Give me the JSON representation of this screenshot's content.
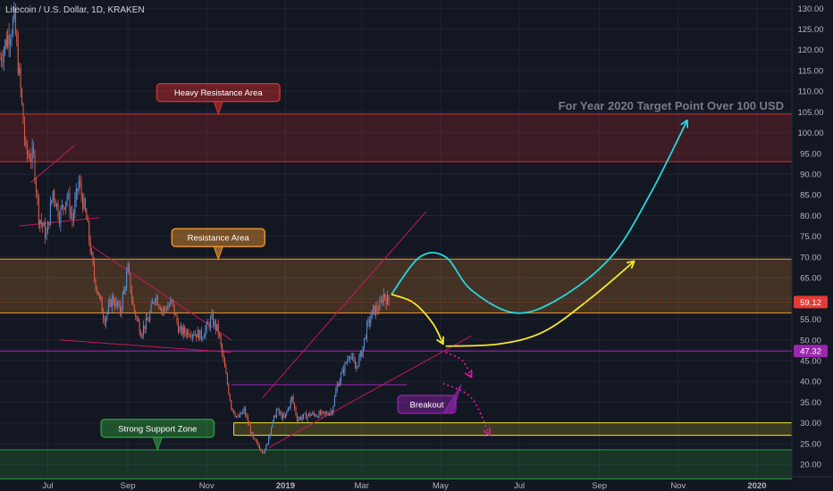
{
  "header": {
    "title": "Litecoin / U.S. Dollar, 1D, KRAKEN"
  },
  "colors": {
    "background": "#131722",
    "grid": "#1f2433",
    "axis_text": "#b2b5be",
    "candle_up": "#5b8fd6",
    "candle_down": "#e05c4a",
    "heavy_resistance": "#d32f2f",
    "resistance": "#f0962e",
    "support": "#2e9e3c",
    "breakout": "#8e24aa",
    "trend": "#c2185b",
    "cyan_path": "#26d7e0",
    "yellow_path": "#f5e52a",
    "magenta_path": "#d81b9b",
    "price_tag": "#e53935",
    "level_tag": "#9c27b0"
  },
  "chart_data": {
    "type": "candlestick",
    "title": "Litecoin / U.S. Dollar, 1D, KRAKEN",
    "ylim": [
      17,
      132
    ],
    "y_ticks": [
      20,
      25,
      30,
      35,
      40,
      45,
      50,
      55,
      60,
      65,
      70,
      75,
      80,
      85,
      90,
      95,
      100,
      105,
      110,
      115,
      120,
      125,
      130
    ],
    "y_tick_labels": [
      "20.00",
      "25.00",
      "30.00",
      "35.00",
      "40.00",
      "45.00",
      "50.00",
      "55.00",
      "60.00",
      "65.00",
      "70.00",
      "75.00",
      "80.00",
      "85.00",
      "90.00",
      "95.00",
      "100.00",
      "105.00",
      "110.00",
      "115.00",
      "120.00",
      "125.00",
      "130.00"
    ],
    "x_ticks": [
      "2018-07-01",
      "2018-09-01",
      "2018-11-01",
      "2019-01-01",
      "2019-03-01",
      "2019-05-01",
      "2019-07-01",
      "2019-09-01",
      "2019-11-01",
      "2020-01-01"
    ],
    "x_tick_labels": [
      "Jul",
      "Sep",
      "Nov",
      "2019",
      "Mar",
      "May",
      "Jul",
      "Sep",
      "Nov",
      "2020"
    ],
    "xlim": [
      "2018-05-25",
      "2020-01-28"
    ],
    "price_anchors": [
      {
        "date": "2018-05-25",
        "price": 118
      },
      {
        "date": "2018-06-01",
        "price": 124
      },
      {
        "date": "2018-06-05",
        "price": 127
      },
      {
        "date": "2018-06-10",
        "price": 110
      },
      {
        "date": "2018-06-14",
        "price": 95
      },
      {
        "date": "2018-06-20",
        "price": 94
      },
      {
        "date": "2018-06-24",
        "price": 80
      },
      {
        "date": "2018-06-30",
        "price": 75
      },
      {
        "date": "2018-07-05",
        "price": 86
      },
      {
        "date": "2018-07-10",
        "price": 80
      },
      {
        "date": "2018-07-16",
        "price": 85
      },
      {
        "date": "2018-07-20",
        "price": 79
      },
      {
        "date": "2018-07-25",
        "price": 88
      },
      {
        "date": "2018-07-31",
        "price": 79
      },
      {
        "date": "2018-08-06",
        "price": 65
      },
      {
        "date": "2018-08-14",
        "price": 55
      },
      {
        "date": "2018-08-20",
        "price": 60
      },
      {
        "date": "2018-08-26",
        "price": 57
      },
      {
        "date": "2018-09-01",
        "price": 67
      },
      {
        "date": "2018-09-05",
        "price": 58
      },
      {
        "date": "2018-09-11",
        "price": 52
      },
      {
        "date": "2018-09-17",
        "price": 55
      },
      {
        "date": "2018-09-22",
        "price": 61
      },
      {
        "date": "2018-09-28",
        "price": 57
      },
      {
        "date": "2018-10-05",
        "price": 59
      },
      {
        "date": "2018-10-11",
        "price": 52
      },
      {
        "date": "2018-10-20",
        "price": 52
      },
      {
        "date": "2018-10-28",
        "price": 51
      },
      {
        "date": "2018-11-05",
        "price": 55
      },
      {
        "date": "2018-11-10",
        "price": 52
      },
      {
        "date": "2018-11-15",
        "price": 43
      },
      {
        "date": "2018-11-20",
        "price": 34
      },
      {
        "date": "2018-11-25",
        "price": 31
      },
      {
        "date": "2018-11-30",
        "price": 33
      },
      {
        "date": "2018-12-07",
        "price": 26
      },
      {
        "date": "2018-12-12",
        "price": 24
      },
      {
        "date": "2018-12-16",
        "price": 23
      },
      {
        "date": "2018-12-20",
        "price": 28
      },
      {
        "date": "2018-12-25",
        "price": 33
      },
      {
        "date": "2018-12-31",
        "price": 31
      },
      {
        "date": "2019-01-06",
        "price": 36
      },
      {
        "date": "2019-01-10",
        "price": 31
      },
      {
        "date": "2019-01-20",
        "price": 32
      },
      {
        "date": "2019-01-31",
        "price": 32
      },
      {
        "date": "2019-02-06",
        "price": 33
      },
      {
        "date": "2019-02-10",
        "price": 39
      },
      {
        "date": "2019-02-15",
        "price": 43
      },
      {
        "date": "2019-02-20",
        "price": 47
      },
      {
        "date": "2019-02-24",
        "price": 43
      },
      {
        "date": "2019-03-01",
        "price": 47
      },
      {
        "date": "2019-03-05",
        "price": 53
      },
      {
        "date": "2019-03-10",
        "price": 57
      },
      {
        "date": "2019-03-15",
        "price": 58
      },
      {
        "date": "2019-03-18",
        "price": 61
      },
      {
        "date": "2019-03-22",
        "price": 59
      }
    ],
    "last_price": 59.12,
    "last_price_label": "59.12",
    "levels": [
      {
        "name": "Heavy Resistance Area",
        "type": "zone",
        "low": 93,
        "high": 104.5,
        "color": "#d32f2f"
      },
      {
        "name": "Resistance Area",
        "type": "zone",
        "low": 56.5,
        "high": 69.5,
        "color": "#f0962e"
      },
      {
        "name": "Strong Support Zone",
        "type": "zone",
        "low": 16.5,
        "high": 23.5,
        "color": "#2e9e3c"
      },
      {
        "name": "Yellow Box",
        "type": "zone",
        "low": 27,
        "high": 30,
        "color": "#f5e52a"
      },
      {
        "name": "Purple Line",
        "type": "line",
        "value": 47.32,
        "color": "#9c27b0"
      },
      {
        "name": "Breakout Line",
        "type": "segment",
        "value": 39.2,
        "from": "2018-11-20",
        "to": "2019-04-05",
        "color": "#8e24aa"
      }
    ],
    "level_tag_label": "47.32",
    "annotations": [
      {
        "text": "Heavy Resistance Area",
        "date": "2018-11-10",
        "price": 104.5,
        "color": "#d32f2f"
      },
      {
        "text": "Resistance Area",
        "date": "2018-11-10",
        "price": 69.5,
        "color": "#f0962e"
      },
      {
        "text": "Strong Support Zone",
        "date": "2018-09-24",
        "price": 23.5,
        "color": "#2e9e3c"
      },
      {
        "text": "Breakout",
        "date": "2019-04-20",
        "price": 39.2,
        "color": "#8e24aa"
      }
    ],
    "headline": "For Year 2020 Target Point Over 100 USD",
    "trendlines": [
      {
        "from": {
          "date": "2018-06-09",
          "price": 77.5
        },
        "to": {
          "date": "2018-08-10",
          "price": 79.5
        }
      },
      {
        "from": {
          "date": "2018-06-18",
          "price": 88
        },
        "to": {
          "date": "2018-07-22",
          "price": 97
        }
      },
      {
        "from": {
          "date": "2018-07-10",
          "price": 50
        },
        "to": {
          "date": "2018-11-20",
          "price": 47
        }
      },
      {
        "from": {
          "date": "2018-08-02",
          "price": 73
        },
        "to": {
          "date": "2018-11-20",
          "price": 50
        }
      },
      {
        "from": {
          "date": "2018-12-19",
          "price": 24
        },
        "to": {
          "date": "2019-05-25",
          "price": 51
        }
      },
      {
        "from": {
          "date": "2018-12-14",
          "price": 36
        },
        "to": {
          "date": "2019-04-20",
          "price": 81
        }
      }
    ],
    "projections": [
      {
        "name": "cyan",
        "points": [
          {
            "date": "2019-03-24",
            "price": 61
          },
          {
            "date": "2019-04-15",
            "price": 70
          },
          {
            "date": "2019-05-05",
            "price": 70
          },
          {
            "date": "2019-05-25",
            "price": 62
          },
          {
            "date": "2019-06-28",
            "price": 56.5
          },
          {
            "date": "2019-08-01",
            "price": 60
          },
          {
            "date": "2019-09-10",
            "price": 70
          },
          {
            "date": "2019-10-10",
            "price": 85
          },
          {
            "date": "2019-11-08",
            "price": 103
          }
        ]
      },
      {
        "name": "yellow_up",
        "points": [
          {
            "date": "2019-05-05",
            "price": 48.5
          },
          {
            "date": "2019-06-15",
            "price": 49
          },
          {
            "date": "2019-07-20",
            "price": 52
          },
          {
            "date": "2019-08-25",
            "price": 60
          },
          {
            "date": "2019-09-28",
            "price": 69
          }
        ]
      },
      {
        "name": "yellow_down",
        "points": [
          {
            "date": "2019-03-24",
            "price": 61
          },
          {
            "date": "2019-04-10",
            "price": 59
          },
          {
            "date": "2019-04-25",
            "price": 54
          },
          {
            "date": "2019-05-03",
            "price": 49
          }
        ]
      },
      {
        "name": "magenta_1",
        "points": [
          {
            "date": "2019-05-05",
            "price": 47
          },
          {
            "date": "2019-05-18",
            "price": 45
          },
          {
            "date": "2019-05-25",
            "price": 41
          }
        ]
      },
      {
        "name": "magenta_2",
        "points": [
          {
            "date": "2019-05-03",
            "price": 39.5
          },
          {
            "date": "2019-05-25",
            "price": 36
          },
          {
            "date": "2019-06-08",
            "price": 27
          }
        ]
      }
    ]
  }
}
